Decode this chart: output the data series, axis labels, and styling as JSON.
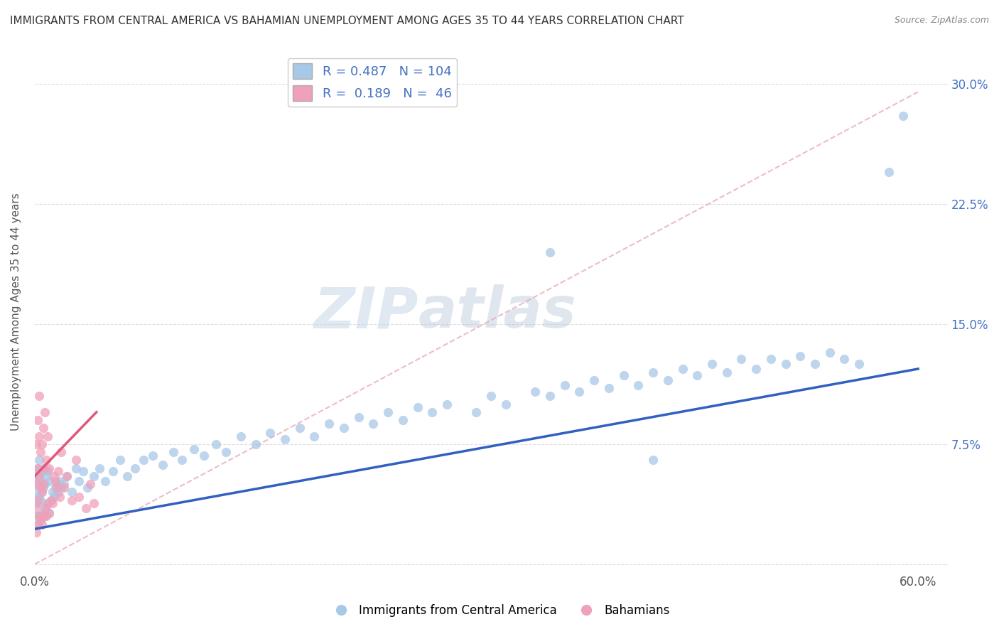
{
  "title": "IMMIGRANTS FROM CENTRAL AMERICA VS BAHAMIAN UNEMPLOYMENT AMONG AGES 35 TO 44 YEARS CORRELATION CHART",
  "source": "Source: ZipAtlas.com",
  "ylabel": "Unemployment Among Ages 35 to 44 years",
  "xlim": [
    0.0,
    0.62
  ],
  "ylim": [
    -0.005,
    0.32
  ],
  "xticks": [
    0.0,
    0.1,
    0.2,
    0.3,
    0.4,
    0.5,
    0.6
  ],
  "xticklabels": [
    "0.0%",
    "",
    "",
    "",
    "",
    "",
    "60.0%"
  ],
  "yticks": [
    0.0,
    0.075,
    0.15,
    0.225,
    0.3
  ],
  "yticklabels": [
    "",
    "7.5%",
    "15.0%",
    "22.5%",
    "30.0%"
  ],
  "blue_R": 0.487,
  "blue_N": 104,
  "pink_R": 0.189,
  "pink_N": 46,
  "blue_color": "#A8C8E8",
  "pink_color": "#F0A0B8",
  "blue_line_color": "#3060C0",
  "pink_line_color": "#E05878",
  "background_color": "#ffffff",
  "legend_blue_label": "Immigrants from Central America",
  "legend_pink_label": "Bahamians",
  "watermark_zip": "ZIP",
  "watermark_atlas": "atlas",
  "blue_scatter_x": [
    0.001,
    0.001,
    0.001,
    0.002,
    0.002,
    0.002,
    0.002,
    0.003,
    0.003,
    0.003,
    0.003,
    0.004,
    0.004,
    0.004,
    0.005,
    0.005,
    0.005,
    0.006,
    0.006,
    0.006,
    0.007,
    0.007,
    0.008,
    0.008,
    0.009,
    0.009,
    0.01,
    0.01,
    0.011,
    0.012,
    0.013,
    0.014,
    0.015,
    0.016,
    0.017,
    0.018,
    0.02,
    0.022,
    0.025,
    0.028,
    0.03,
    0.033,
    0.036,
    0.04,
    0.044,
    0.048,
    0.053,
    0.058,
    0.063,
    0.068,
    0.074,
    0.08,
    0.087,
    0.094,
    0.1,
    0.108,
    0.115,
    0.123,
    0.13,
    0.14,
    0.15,
    0.16,
    0.17,
    0.18,
    0.19,
    0.2,
    0.21,
    0.22,
    0.23,
    0.24,
    0.25,
    0.26,
    0.27,
    0.28,
    0.3,
    0.31,
    0.32,
    0.34,
    0.35,
    0.36,
    0.37,
    0.38,
    0.39,
    0.4,
    0.41,
    0.42,
    0.43,
    0.44,
    0.45,
    0.46,
    0.47,
    0.48,
    0.49,
    0.5,
    0.51,
    0.52,
    0.53,
    0.54,
    0.55,
    0.56,
    0.35,
    0.42,
    0.58,
    0.59
  ],
  "blue_scatter_y": [
    0.03,
    0.045,
    0.055,
    0.025,
    0.038,
    0.05,
    0.06,
    0.03,
    0.042,
    0.055,
    0.065,
    0.028,
    0.04,
    0.052,
    0.03,
    0.045,
    0.058,
    0.032,
    0.048,
    0.06,
    0.03,
    0.05,
    0.035,
    0.055,
    0.038,
    0.058,
    0.032,
    0.052,
    0.04,
    0.045,
    0.042,
    0.048,
    0.05,
    0.045,
    0.052,
    0.048,
    0.05,
    0.055,
    0.045,
    0.06,
    0.052,
    0.058,
    0.048,
    0.055,
    0.06,
    0.052,
    0.058,
    0.065,
    0.055,
    0.06,
    0.065,
    0.068,
    0.062,
    0.07,
    0.065,
    0.072,
    0.068,
    0.075,
    0.07,
    0.08,
    0.075,
    0.082,
    0.078,
    0.085,
    0.08,
    0.088,
    0.085,
    0.092,
    0.088,
    0.095,
    0.09,
    0.098,
    0.095,
    0.1,
    0.095,
    0.105,
    0.1,
    0.108,
    0.105,
    0.112,
    0.108,
    0.115,
    0.11,
    0.118,
    0.112,
    0.12,
    0.115,
    0.122,
    0.118,
    0.125,
    0.12,
    0.128,
    0.122,
    0.128,
    0.125,
    0.13,
    0.125,
    0.132,
    0.128,
    0.125,
    0.195,
    0.065,
    0.245,
    0.28
  ],
  "pink_scatter_x": [
    0.001,
    0.001,
    0.001,
    0.001,
    0.002,
    0.002,
    0.002,
    0.002,
    0.003,
    0.003,
    0.003,
    0.003,
    0.004,
    0.004,
    0.004,
    0.005,
    0.005,
    0.005,
    0.006,
    0.006,
    0.006,
    0.007,
    0.007,
    0.007,
    0.008,
    0.008,
    0.009,
    0.009,
    0.01,
    0.01,
    0.011,
    0.012,
    0.013,
    0.014,
    0.015,
    0.016,
    0.017,
    0.018,
    0.02,
    0.022,
    0.025,
    0.028,
    0.03,
    0.035,
    0.038,
    0.04
  ],
  "pink_scatter_y": [
    0.02,
    0.035,
    0.05,
    0.075,
    0.025,
    0.04,
    0.06,
    0.09,
    0.03,
    0.055,
    0.08,
    0.105,
    0.028,
    0.048,
    0.07,
    0.025,
    0.045,
    0.075,
    0.03,
    0.05,
    0.085,
    0.035,
    0.06,
    0.095,
    0.03,
    0.065,
    0.038,
    0.08,
    0.032,
    0.06,
    0.04,
    0.038,
    0.055,
    0.052,
    0.048,
    0.058,
    0.042,
    0.07,
    0.048,
    0.055,
    0.04,
    0.065,
    0.042,
    0.035,
    0.05,
    0.038
  ],
  "blue_trend_x": [
    0.0,
    0.6
  ],
  "blue_trend_y": [
    0.022,
    0.122
  ],
  "pink_trend_x": [
    0.0,
    0.042
  ],
  "pink_trend_y": [
    0.055,
    0.095
  ],
  "dashed_trend_x": [
    0.0,
    0.6
  ],
  "dashed_trend_y": [
    0.0,
    0.295
  ]
}
